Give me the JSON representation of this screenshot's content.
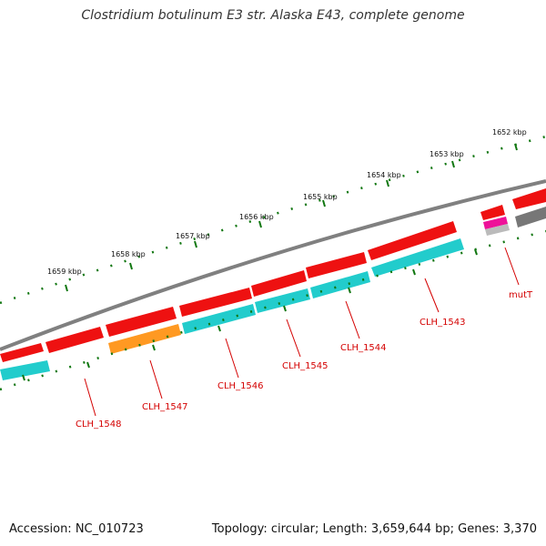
{
  "title": "Clostridium botulinum E3 str. Alaska E43, complete genome",
  "footer": {
    "accession": "Accession: NC_010723",
    "summary": "Topology: circular; Length: 3,659,644 bp; Genes: 3,370"
  },
  "kbp_labels": [
    "1652 kbp",
    "1653 kbp",
    "1654 kbp",
    "1655 kbp",
    "1656 kbp",
    "1657 kbp",
    "1658 kbp",
    "1659 kbp"
  ],
  "gene_labels": [
    "mutT",
    "CLH_1543",
    "CLH_1544",
    "CLH_1545",
    "CLH_1546",
    "CLH_1547",
    "CLH_1548"
  ],
  "colors": {
    "backbone": "#808080",
    "cds_forward": "#ee1111",
    "cds_reverse": "#22cccc",
    "gene_orange": "#ff9922",
    "gene_magenta": "#ee1199",
    "gene_grey": "#777777",
    "tick": "#117711",
    "label": "#d40000"
  }
}
